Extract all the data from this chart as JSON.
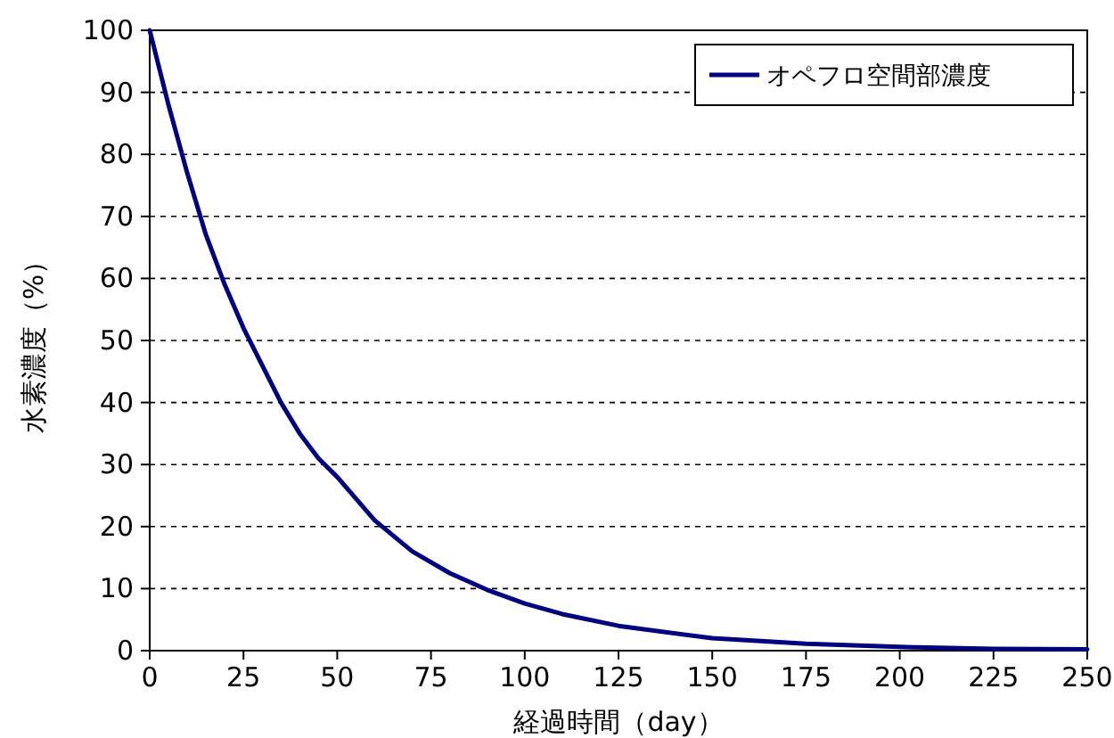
{
  "chart_data": {
    "type": "line",
    "xlabel": "経過時間（day）",
    "ylabel": "水素濃度（%）",
    "x": [
      0,
      5,
      10,
      15,
      20,
      25,
      30,
      35,
      40,
      45,
      50,
      60,
      70,
      80,
      90,
      100,
      110,
      125,
      150,
      175,
      200,
      225,
      250
    ],
    "series": [
      {
        "name": "オペフロ空間部濃度",
        "color": "#000080",
        "values": [
          100,
          88,
          77,
          67,
          59,
          52,
          46,
          40,
          35,
          31,
          28,
          21,
          16,
          12.5,
          9.8,
          7.6,
          5.9,
          4,
          2,
          1.1,
          0.6,
          0.3,
          0.2
        ]
      }
    ],
    "xlim": [
      0,
      250
    ],
    "ylim": [
      0,
      100
    ],
    "xticks": [
      0,
      25,
      50,
      75,
      100,
      125,
      150,
      175,
      200,
      225,
      250
    ],
    "yticks": [
      0,
      10,
      20,
      30,
      40,
      50,
      60,
      70,
      80,
      90,
      100
    ],
    "grid": "y",
    "legend": "top right"
  }
}
